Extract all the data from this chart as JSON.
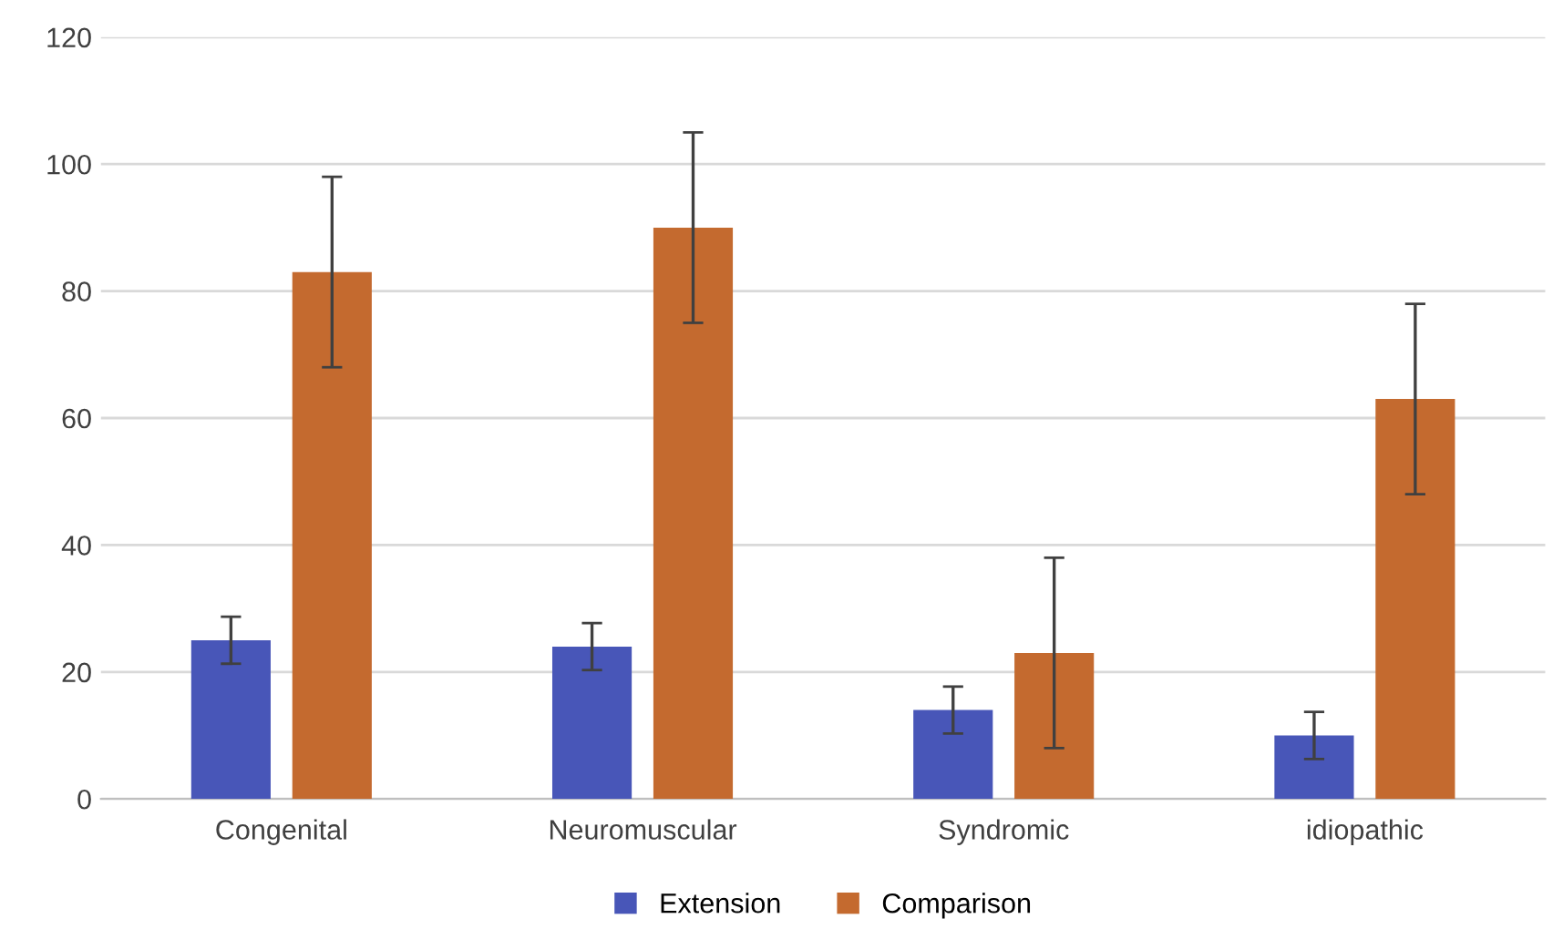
{
  "chart_data": {
    "type": "bar",
    "categories": [
      "Congenital",
      "Neuromuscular",
      "Syndromic",
      "idiopathic"
    ],
    "series": [
      {
        "name": "Extension",
        "color": "#4856b8",
        "values": [
          25,
          24,
          14,
          10
        ],
        "errors": [
          3.7,
          3.7,
          3.7,
          3.7
        ]
      },
      {
        "name": "Comparison",
        "color": "#c46a2f",
        "values": [
          83,
          90,
          23,
          63
        ],
        "errors": [
          15,
          15,
          15,
          15
        ]
      }
    ],
    "ylim": [
      0,
      120
    ],
    "yticks": [
      0,
      20,
      40,
      60,
      80,
      100,
      120
    ],
    "grid": "y",
    "legend": "bottom"
  }
}
